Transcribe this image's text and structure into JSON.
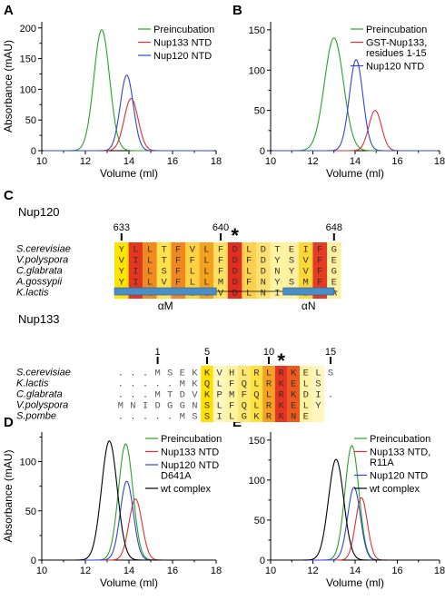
{
  "panels": {
    "A": {
      "letter": "A"
    },
    "B": {
      "letter": "B"
    },
    "C": {
      "letter": "C"
    },
    "D": {
      "letter": "D"
    },
    "E": {
      "letter": "E"
    }
  },
  "chart_data": [
    {
      "id": "A",
      "type": "line",
      "ylabel": "Absorbance (mAU)",
      "xlabel": "Volume (ml)",
      "xlim": [
        10,
        18
      ],
      "ylim": [
        0,
        210
      ],
      "xticks": [
        "10",
        "12",
        "14",
        "16",
        "18"
      ],
      "yticks": [
        "0",
        "50",
        "100",
        "150",
        "200"
      ],
      "legend_position": "top-right",
      "series": [
        {
          "name": "Preincubation",
          "color": "#2aa02a",
          "peaks": [
            {
              "x": 12.75,
              "y": 197,
              "w": 0.36
            }
          ]
        },
        {
          "name": "Nup133 NTD",
          "color": "#e03030",
          "peaks": [
            {
              "x": 14.1,
              "y": 85,
              "w": 0.32
            }
          ]
        },
        {
          "name": "Nup120 NTD",
          "color": "#3045d0",
          "peaks": [
            {
              "x": 13.9,
              "y": 123,
              "w": 0.3
            }
          ]
        }
      ]
    },
    {
      "id": "B",
      "type": "line",
      "ylabel": "",
      "xlabel": "Volume (ml)",
      "xlim": [
        10,
        18
      ],
      "ylim": [
        0,
        160
      ],
      "xticks": [
        "10",
        "12",
        "14",
        "16",
        "18"
      ],
      "yticks": [
        "0",
        "50",
        "100",
        "150"
      ],
      "legend_position": "top-right",
      "series": [
        {
          "name": "Preincubation",
          "color": "#2aa02a",
          "peaks": [
            {
              "x": 13.0,
              "y": 140,
              "w": 0.45
            }
          ]
        },
        {
          "name": "GST-Nup133, residues 1-15",
          "color": "#e03030",
          "peaks": [
            {
              "x": 14.95,
              "y": 50,
              "w": 0.3
            }
          ]
        },
        {
          "name": "Nup120 NTD",
          "color": "#3045d0",
          "peaks": [
            {
              "x": 14.05,
              "y": 113,
              "w": 0.32
            }
          ]
        }
      ]
    },
    {
      "id": "D",
      "type": "line",
      "ylabel": "Absorbance (mAU)",
      "xlabel": "Volume (ml)",
      "xlim": [
        10,
        18
      ],
      "ylim": [
        0,
        130
      ],
      "xticks": [
        "10",
        "12",
        "14",
        "16",
        "18"
      ],
      "yticks": [
        "0",
        "50",
        "100"
      ],
      "legend_position": "top-right",
      "series": [
        {
          "name": "Preincubation",
          "color": "#2aa02a",
          "peaks": [
            {
              "x": 13.85,
              "y": 118,
              "w": 0.33
            }
          ]
        },
        {
          "name": "Nup133 NTD",
          "color": "#e03030",
          "peaks": [
            {
              "x": 14.3,
              "y": 62,
              "w": 0.3
            }
          ]
        },
        {
          "name": "Nup120 NTD D641A",
          "color": "#3045d0",
          "peaks": [
            {
              "x": 13.9,
              "y": 80,
              "w": 0.3
            }
          ]
        },
        {
          "name": "wt complex",
          "color": "#000000",
          "peaks": [
            {
              "x": 13.1,
              "y": 121,
              "w": 0.36
            }
          ]
        }
      ]
    },
    {
      "id": "E",
      "type": "line",
      "ylabel": "",
      "xlabel": "Volume (ml)",
      "xlim": [
        10,
        18
      ],
      "ylim": [
        0,
        160
      ],
      "xticks": [
        "10",
        "12",
        "14",
        "16",
        "18"
      ],
      "yticks": [
        "0",
        "50",
        "100",
        "150"
      ],
      "legend_position": "top-right",
      "series": [
        {
          "name": "Preincubation",
          "color": "#2aa02a",
          "peaks": [
            {
              "x": 13.85,
              "y": 143,
              "w": 0.33
            }
          ]
        },
        {
          "name": "Nup133 NTD, R11A",
          "color": "#e03030",
          "peaks": [
            {
              "x": 14.3,
              "y": 78,
              "w": 0.28
            }
          ]
        },
        {
          "name": "Nup120 NTD",
          "color": "#3045d0",
          "peaks": [
            {
              "x": 13.95,
              "y": 91,
              "w": 0.3
            }
          ]
        },
        {
          "name": "wt complex",
          "color": "#000000",
          "peaks": [
            {
              "x": 13.1,
              "y": 126,
              "w": 0.36
            }
          ]
        }
      ]
    }
  ],
  "alignments": [
    {
      "title": "Nup120",
      "numbers": [
        {
          "label": "633",
          "col": 0
        },
        {
          "label": "640",
          "col": 7
        },
        {
          "label": "648",
          "col": 15
        }
      ],
      "star_col": 8,
      "rows": [
        {
          "species": "S.cerevisiae",
          "seq": "YLLTFVLFDLDTEIFG"
        },
        {
          "species": "V.polyspora",
          "seq": "VILTFFLFDFDYSVFE"
        },
        {
          "species": "C.glabrata",
          "seq": "YILSFLLFDLDNYVFG"
        },
        {
          "species": "A.gossypii",
          "seq": "YILVFLLMDFNYSMFE"
        },
        {
          "species": "K.lactis",
          "seq": "YILVFLLVDLNIYEVA"
        }
      ],
      "col_colors": [
        "#ffe400",
        "#e5351f",
        "#f08a1e",
        "#ffe24a",
        "#f0881e",
        "#ffd040",
        "#f4a21e",
        "#ffe060",
        "#e22d1f",
        "#ffd050",
        "#fce070",
        "#fff2a0",
        "#fff0a0",
        "#ffd838",
        "#e73a22",
        "#fff0a0"
      ],
      "helices": [
        {
          "label": "αM",
          "start": 0,
          "end": 7.2
        },
        {
          "label": "αN",
          "start": 11.9,
          "end": 15.5
        }
      ]
    },
    {
      "title": "Nup133",
      "numbers": [
        {
          "label": "1",
          "col": 3
        },
        {
          "label": "5",
          "col": 7
        },
        {
          "label": "10",
          "col": 12
        },
        {
          "label": "15",
          "col": 17
        }
      ],
      "star_col": 13,
      "rows": [
        {
          "species": "S.cerevisiae",
          "seq": "...MSEKKVHLRLRKELS"
        },
        {
          "species": "K.lactis",
          "seq": ".....MKQLFQLRKELS"
        },
        {
          "species": "C.glabrata",
          "seq": "...MTDVKPMFQLRKDI."
        },
        {
          "species": "V.polyspora",
          "seq": "MNIDGGNSLFQLRKELY"
        },
        {
          "species": "S.pombe",
          "seq": ".....MSSILGKRKNE"
        }
      ],
      "col_colors": [
        "",
        "",
        "",
        "",
        "",
        "",
        "",
        "#ffe000",
        "#fff6c0",
        "#fff2a0",
        "#ffe870",
        "#ffe040",
        "#f5a020",
        "#e53520",
        "#ec5a20",
        "#fff2a0",
        "#fff6c0",
        ""
      ]
    }
  ]
}
